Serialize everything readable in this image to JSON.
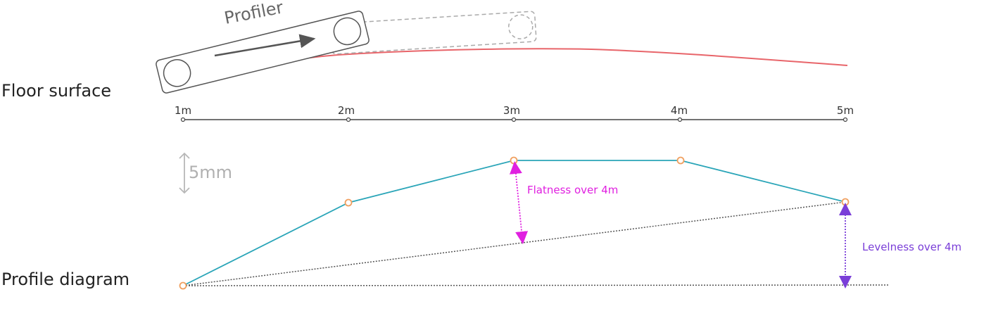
{
  "labels": {
    "floor_surface": "Floor surface",
    "profile_diagram": "Profile diagram",
    "profiler": "Profiler",
    "scale": "5mm",
    "flatness": "Flatness over 4m",
    "levelness": "Levelness over 4m"
  },
  "axis": {
    "ticks": [
      "1m",
      "2m",
      "3m",
      "4m",
      "5m"
    ]
  },
  "colors": {
    "floor": "#e8656a",
    "profile": "#2aa5b8",
    "points": "#f0a060",
    "flatness": "#e020e0",
    "levelness": "#7a3ed8",
    "axis": "#444444",
    "scale": "#b8b8b8"
  }
}
